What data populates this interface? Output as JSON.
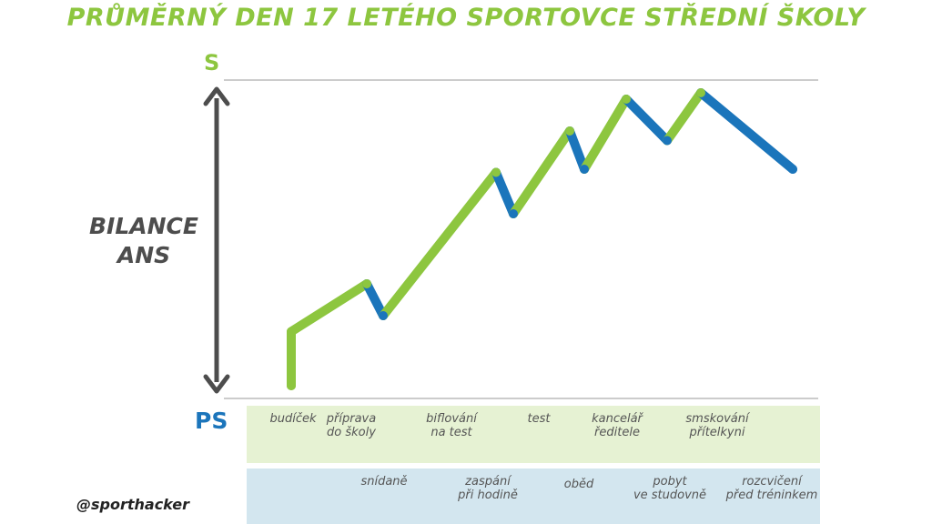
{
  "title": "PRŮMĚRNÝ DEN 17 LETÉHO SPORTOVCE STŘEDNÍ ŠKOLY",
  "credit": "@sporthacker",
  "colors": {
    "rise": "#8dc63f",
    "fall": "#1b75bb",
    "axis": "#4d4d4d",
    "band_top": "#e6f2d3",
    "band_bottom": "#d3e6ef"
  },
  "chart_data": {
    "type": "line",
    "title": "PRŮMĚRNÝ DEN 17 LETÉHO SPORTOVCE STŘEDNÍ ŠKOLY",
    "ylabel": "BILANCE\nANS",
    "y_top_label": "S",
    "y_bottom_label": "PS",
    "ylim": [
      0,
      100
    ],
    "grid": "horizontal lines at S and PS",
    "x": [
      0,
      1,
      2,
      3,
      4,
      5,
      6,
      7,
      8,
      9,
      10,
      11
    ],
    "values": [
      4,
      21,
      36,
      26,
      71,
      58,
      84,
      72,
      94,
      81,
      96,
      72
    ],
    "segment_types": [
      "rise",
      "rise",
      "fall",
      "rise",
      "fall",
      "rise",
      "fall",
      "rise",
      "fall",
      "rise",
      "fall"
    ],
    "events_top": [
      {
        "x": 0,
        "label": "budíček"
      },
      {
        "x": 1,
        "label": "příprava\ndo školy"
      },
      {
        "x": 3,
        "label": "biflování\nna test"
      },
      {
        "x": 5,
        "label": "test"
      },
      {
        "x": 7,
        "label": "kancelář\nředitele"
      },
      {
        "x": 9,
        "label": "smskování\npřítelkyni"
      }
    ],
    "events_bottom": [
      {
        "x": 2,
        "label": "snídaně"
      },
      {
        "x": 4,
        "label": "zaspání\npři hodině"
      },
      {
        "x": 6,
        "label": "oběd"
      },
      {
        "x": 8,
        "label": "pobyt\nve studovně"
      },
      {
        "x": 10,
        "label": "rozcvičení\npřed tréninkem"
      }
    ]
  }
}
